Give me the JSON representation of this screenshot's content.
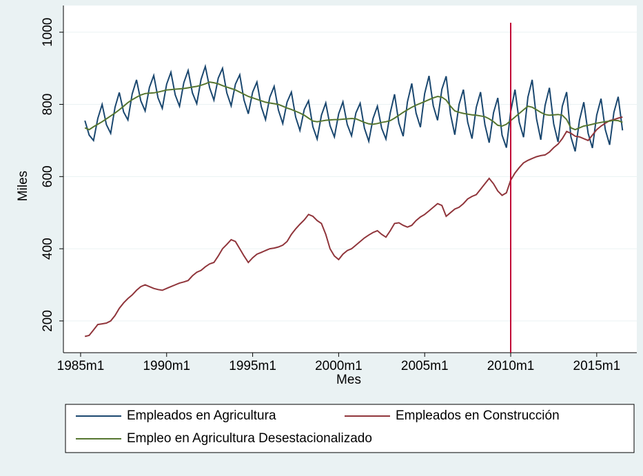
{
  "chart_data": {
    "type": "line",
    "xlabel": "Mes",
    "ylabel": "Miles",
    "xlim": [
      1984,
      2017.33
    ],
    "ylim": [
      112,
      1074
    ],
    "xticks": [
      {
        "value": 1985,
        "label": "1985m1"
      },
      {
        "value": 1990,
        "label": "1990m1"
      },
      {
        "value": 1995,
        "label": "1995m1"
      },
      {
        "value": 2000,
        "label": "2000m1"
      },
      {
        "value": 2005,
        "label": "2005m1"
      },
      {
        "value": 2010,
        "label": "2010m1"
      },
      {
        "value": 2015,
        "label": "2015m1"
      }
    ],
    "yticks": [
      200,
      400,
      600,
      800,
      1000
    ],
    "grid": true,
    "legend": "bottom",
    "vline": {
      "value": 2010,
      "color": "#c10534"
    },
    "x": [
      1985.25,
      1985.5,
      1985.75,
      1986,
      1986.25,
      1986.5,
      1986.75,
      1987,
      1987.25,
      1987.5,
      1987.75,
      1988,
      1988.25,
      1988.5,
      1988.75,
      1989,
      1989.25,
      1989.5,
      1989.75,
      1990,
      1990.25,
      1990.5,
      1990.75,
      1991,
      1991.25,
      1991.5,
      1991.75,
      1992,
      1992.25,
      1992.5,
      1992.75,
      1993,
      1993.25,
      1993.5,
      1993.75,
      1994,
      1994.25,
      1994.5,
      1994.75,
      1995,
      1995.25,
      1995.5,
      1995.75,
      1996,
      1996.25,
      1996.5,
      1996.75,
      1997,
      1997.25,
      1997.5,
      1997.75,
      1998,
      1998.25,
      1998.5,
      1998.75,
      1999,
      1999.25,
      1999.5,
      1999.75,
      2000,
      2000.25,
      2000.5,
      2000.75,
      2001,
      2001.25,
      2001.5,
      2001.75,
      2002,
      2002.25,
      2002.5,
      2002.75,
      2003,
      2003.25,
      2003.5,
      2003.75,
      2004,
      2004.25,
      2004.5,
      2004.75,
      2005,
      2005.25,
      2005.5,
      2005.75,
      2006,
      2006.25,
      2006.5,
      2006.75,
      2007,
      2007.25,
      2007.5,
      2007.75,
      2008,
      2008.25,
      2008.5,
      2008.75,
      2009,
      2009.25,
      2009.5,
      2009.75,
      2010,
      2010.25,
      2010.5,
      2010.75,
      2011,
      2011.25,
      2011.5,
      2011.75,
      2012,
      2012.25,
      2012.5,
      2012.75,
      2013,
      2013.25,
      2013.5,
      2013.75,
      2014,
      2014.25,
      2014.5,
      2014.75,
      2015,
      2015.25,
      2015.5,
      2015.75,
      2016,
      2016.25,
      2016.5
    ],
    "series": [
      {
        "name": "Empleados en Agricultura",
        "color": "#1a476f",
        "values": [
          755,
          715,
          700,
          761,
          800,
          744,
          720,
          792,
          833,
          779,
          757,
          829,
          868,
          810,
          782,
          847,
          880,
          818,
          789,
          856,
          889,
          826,
          795,
          860,
          894,
          832,
          802,
          869,
          905,
          846,
          812,
          873,
          900,
          832,
          796,
          856,
          882,
          812,
          774,
          834,
          862,
          794,
          758,
          820,
          850,
          784,
          747,
          806,
          834,
          765,
          728,
          786,
          810,
          738,
          704,
          770,
          804,
          741,
          710,
          774,
          807,
          744,
          713,
          776,
          803,
          734,
          698,
          761,
          795,
          734,
          704,
          777,
          828,
          748,
          712,
          807,
          858,
          776,
          737,
          830,
          879,
          796,
          756,
          842,
          878,
          773,
          716,
          800,
          841,
          751,
          705,
          792,
          834,
          744,
          694,
          777,
          818,
          715,
          680,
          780,
          841,
          750,
          709,
          820,
          868,
          760,
          702,
          797,
          846,
          746,
          696,
          795,
          834,
          710,
          670,
          757,
          806,
          720,
          679,
          770,
          816,
          730,
          688,
          778,
          821,
          728
        ]
      },
      {
        "name": "Empleados en Construcción",
        "color": "#90353b",
        "values": [
          157,
          160,
          175,
          190,
          192,
          194,
          200,
          215,
          235,
          250,
          262,
          272,
          285,
          295,
          300,
          295,
          290,
          287,
          285,
          290,
          295,
          300,
          305,
          308,
          312,
          325,
          335,
          340,
          350,
          358,
          362,
          380,
          400,
          412,
          425,
          420,
          400,
          380,
          362,
          375,
          385,
          390,
          395,
          400,
          402,
          405,
          410,
          420,
          440,
          455,
          468,
          480,
          495,
          490,
          478,
          470,
          440,
          400,
          380,
          370,
          385,
          395,
          400,
          410,
          420,
          430,
          438,
          445,
          450,
          440,
          432,
          450,
          470,
          472,
          465,
          460,
          465,
          478,
          488,
          495,
          505,
          515,
          525,
          520,
          490,
          500,
          510,
          515,
          525,
          538,
          545,
          550,
          565,
          580,
          595,
          580,
          560,
          548,
          555,
          590,
          610,
          625,
          638,
          645,
          650,
          655,
          658,
          660,
          668,
          680,
          690,
          705,
          725,
          720,
          712,
          710,
          705,
          700,
          715,
          730,
          740,
          748,
          755,
          758,
          762,
          765
        ]
      },
      {
        "name": "Empleo en Agricultura Desestacionalizado",
        "color": "#55752f",
        "values": [
          735,
          730,
          738,
          745,
          752,
          760,
          768,
          776,
          785,
          795,
          805,
          813,
          820,
          826,
          830,
          831,
          832,
          834,
          837,
          840,
          841,
          842,
          843,
          844,
          846,
          848,
          850,
          853,
          857,
          862,
          860,
          857,
          852,
          848,
          844,
          840,
          834,
          828,
          822,
          818,
          814,
          810,
          806,
          804,
          802,
          800,
          795,
          790,
          786,
          781,
          776,
          770,
          762,
          754,
          752,
          754,
          756,
          757,
          758,
          758,
          759,
          760,
          761,
          760,
          755,
          750,
          746,
          745,
          747,
          750,
          752,
          755,
          762,
          770,
          778,
          785,
          792,
          798,
          803,
          808,
          813,
          818,
          822,
          820,
          812,
          795,
          782,
          778,
          775,
          773,
          771,
          770,
          768,
          766,
          760,
          752,
          742,
          740,
          745,
          755,
          765,
          775,
          785,
          795,
          792,
          785,
          778,
          772,
          770,
          771,
          772,
          770,
          758,
          735,
          730,
          735,
          740,
          742,
          745,
          748,
          750,
          752,
          754,
          756,
          755,
          750
        ]
      }
    ]
  }
}
